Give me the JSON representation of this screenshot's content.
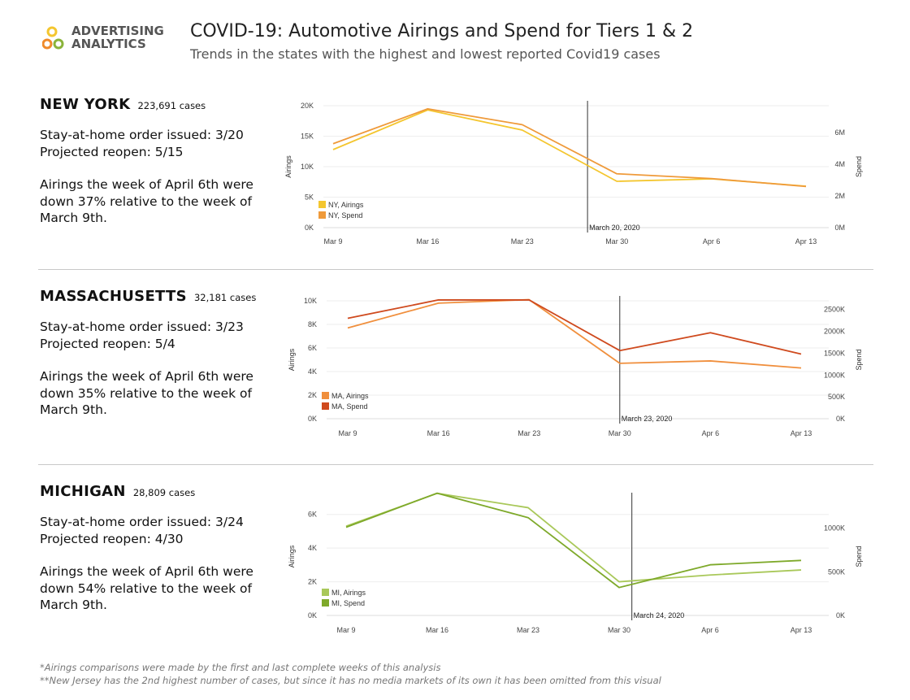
{
  "logo": {
    "line1": "ADVERTISING",
    "line2": "ANALYTICS"
  },
  "header": {
    "title": "COVID-19: Automotive Airings and Spend for Tiers 1 & 2",
    "subtitle": "Trends in the states with the highest and lowest reported Covid19 cases"
  },
  "colors": {
    "ny_airings": "#f4c62f",
    "ny_spend": "#ef9a3a",
    "ma_airings": "#f08f3d",
    "ma_spend": "#cf4a1e",
    "mi_airings": "#a9c85a",
    "mi_spend": "#7ea92a"
  },
  "states": [
    {
      "name": "NEW YORK",
      "cases": "223,691 cases",
      "order": "Stay-at-home order issued: 3/20",
      "reopen": "Projected reopen: 5/15",
      "note": "Airings the week of April 6th were down 37% relative to the week of March 9th."
    },
    {
      "name": "MASSACHUSETTS",
      "cases": "32,181 cases",
      "order": "Stay-at-home order issued: 3/23",
      "reopen": "Projected reopen: 5/4",
      "note": "Airings the week of April 6th were down 35% relative to the week of March 9th."
    },
    {
      "name": "MICHIGAN",
      "cases": "28,809 cases",
      "order": "Stay-at-home order issued: 3/24",
      "reopen": "Projected reopen: 4/30",
      "note": "Airings the week of April 6th were down 54% relative to the week of March 9th."
    }
  ],
  "chart_data": [
    {
      "type": "line",
      "x": [
        "Mar 9",
        "Mar 16",
        "Mar 23",
        "Mar 30",
        "Apr 6",
        "Apr 13"
      ],
      "ylabel": "Airings",
      "y2label": "Spend",
      "ylim": [
        0,
        20000
      ],
      "y2lim": [
        0,
        7700000
      ],
      "yticks": [
        0,
        5000,
        10000,
        15000,
        20000
      ],
      "yticklabels": [
        "0K",
        "5K",
        "10K",
        "15K",
        "20K"
      ],
      "y2ticks": [
        0,
        2000000,
        4000000,
        6000000
      ],
      "y2ticklabels": [
        "0M",
        "2M",
        "4M",
        "6M"
      ],
      "series": [
        {
          "name": "NY, Airings",
          "axis": "left",
          "values": [
            12800,
            19300,
            16000,
            7600,
            8000,
            6800
          ],
          "colorKey": "ny_airings"
        },
        {
          "name": "NY, Spend",
          "axis": "right",
          "values": [
            5300000,
            7500000,
            6500000,
            3400000,
            3100000,
            2600000
          ],
          "colorKey": "ny_spend"
        }
      ],
      "marker": {
        "x": 2.69,
        "label": "March 20, 2020"
      }
    },
    {
      "type": "line",
      "x": [
        "Mar 9",
        "Mar 16",
        "Mar 23",
        "Mar 30",
        "Apr 6",
        "Apr 13"
      ],
      "ylabel": "Airings",
      "y2label": "Spend",
      "ylim": [
        0,
        10000
      ],
      "y2lim": [
        0,
        2700000
      ],
      "yticks": [
        0,
        2000,
        4000,
        6000,
        8000,
        10000
      ],
      "yticklabels": [
        "0K",
        "2K",
        "4K",
        "6K",
        "8K",
        "10K"
      ],
      "y2ticks": [
        0,
        500000,
        1000000,
        1500000,
        2000000,
        2500000
      ],
      "y2ticklabels": [
        "0K",
        "500K",
        "1000K",
        "1500K",
        "2000K",
        "2500K"
      ],
      "series": [
        {
          "name": "MA, Airings",
          "axis": "left",
          "values": [
            7700,
            9800,
            10100,
            4700,
            4900,
            4300
          ],
          "colorKey": "ma_airings"
        },
        {
          "name": "MA, Spend",
          "axis": "right",
          "values": [
            2300000,
            2720000,
            2720000,
            1560000,
            1970000,
            1480000
          ],
          "colorKey": "ma_spend"
        }
      ],
      "marker": {
        "x": 3.0,
        "label": "March 23, 2020"
      }
    },
    {
      "type": "line",
      "x": [
        "Mar 9",
        "Mar 16",
        "Mar 23",
        "Mar 30",
        "Apr 6",
        "Apr 13"
      ],
      "ylabel": "Airings",
      "y2label": "Spend",
      "ylim": [
        0,
        7000
      ],
      "y2lim": [
        0,
        1350000
      ],
      "yticks": [
        0,
        2000,
        4000,
        6000
      ],
      "yticklabels": [
        "0K",
        "2K",
        "4K",
        "6K"
      ],
      "y2ticks": [
        0,
        500000,
        1000000
      ],
      "y2ticklabels": [
        "0K",
        "500K",
        "1000K"
      ],
      "series": [
        {
          "name": "MI, Airings",
          "axis": "left",
          "values": [
            5300,
            7250,
            6400,
            2000,
            2400,
            2700
          ],
          "colorKey": "mi_airings"
        },
        {
          "name": "MI, Spend",
          "axis": "right",
          "values": [
            1010000,
            1400000,
            1120000,
            320000,
            580000,
            630000
          ],
          "colorKey": "mi_spend"
        }
      ],
      "marker": {
        "x": 3.14,
        "label": "March 24, 2020"
      }
    }
  ],
  "footnotes": [
    "*Airings comparisons were made by the first and last complete weeks of this analysis",
    "**New Jersey has the 2nd highest number of cases, but since it has no media markets of its own it has been omitted from this visual"
  ]
}
